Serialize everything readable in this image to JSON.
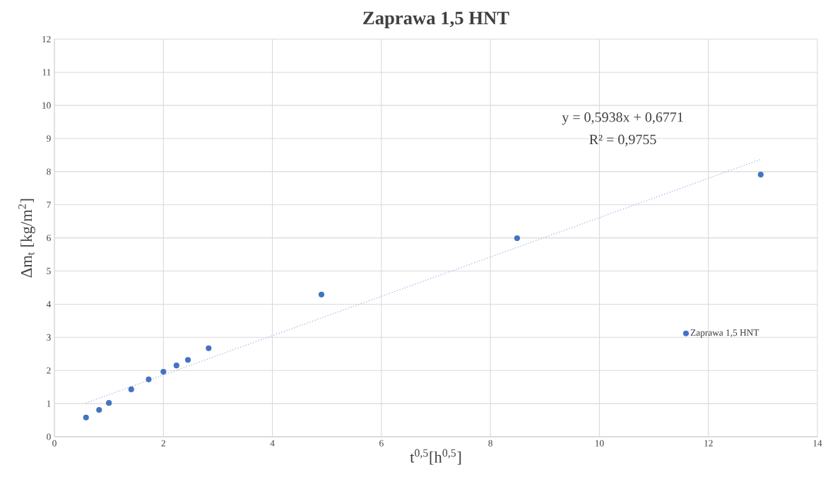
{
  "chart_data": {
    "type": "scatter",
    "title": "Zaprawa 1,5 HNT",
    "xlabel": "t$^{0,5}$[h$^{0,5}$]",
    "ylabel": "Δm$_{t}$ [kg/m$^{2}$]",
    "series": [
      {
        "name": "Zaprawa 1,5 HNT",
        "marker": "circle",
        "color": "#4472c4",
        "x": [
          0.58,
          0.82,
          1.0,
          1.41,
          1.73,
          2.0,
          2.24,
          2.45,
          2.83,
          4.9,
          8.49,
          12.96
        ],
        "values": [
          0.58,
          0.81,
          1.02,
          1.43,
          1.73,
          1.96,
          2.15,
          2.32,
          2.67,
          4.29,
          5.99,
          7.91
        ]
      },
      {
        "type": "line",
        "marker": "none",
        "line_style": "dotted",
        "color": "#8faadc",
        "x": [
          0.58,
          12.96
        ],
        "values": [
          1.02,
          8.37
        ]
      }
    ],
    "annotations": [
      "y = 0,5938x + 0,6771",
      "R² = 0,9755"
    ],
    "xlim": [
      0,
      14
    ],
    "xticks": [
      0,
      2,
      4,
      6,
      8,
      10,
      12,
      14
    ],
    "ylim": [
      0,
      12
    ],
    "yticks": [
      0,
      1,
      2,
      3,
      4,
      5,
      6,
      7,
      8,
      9,
      10,
      11,
      12
    ],
    "grid": true,
    "legend": "bottom right"
  }
}
